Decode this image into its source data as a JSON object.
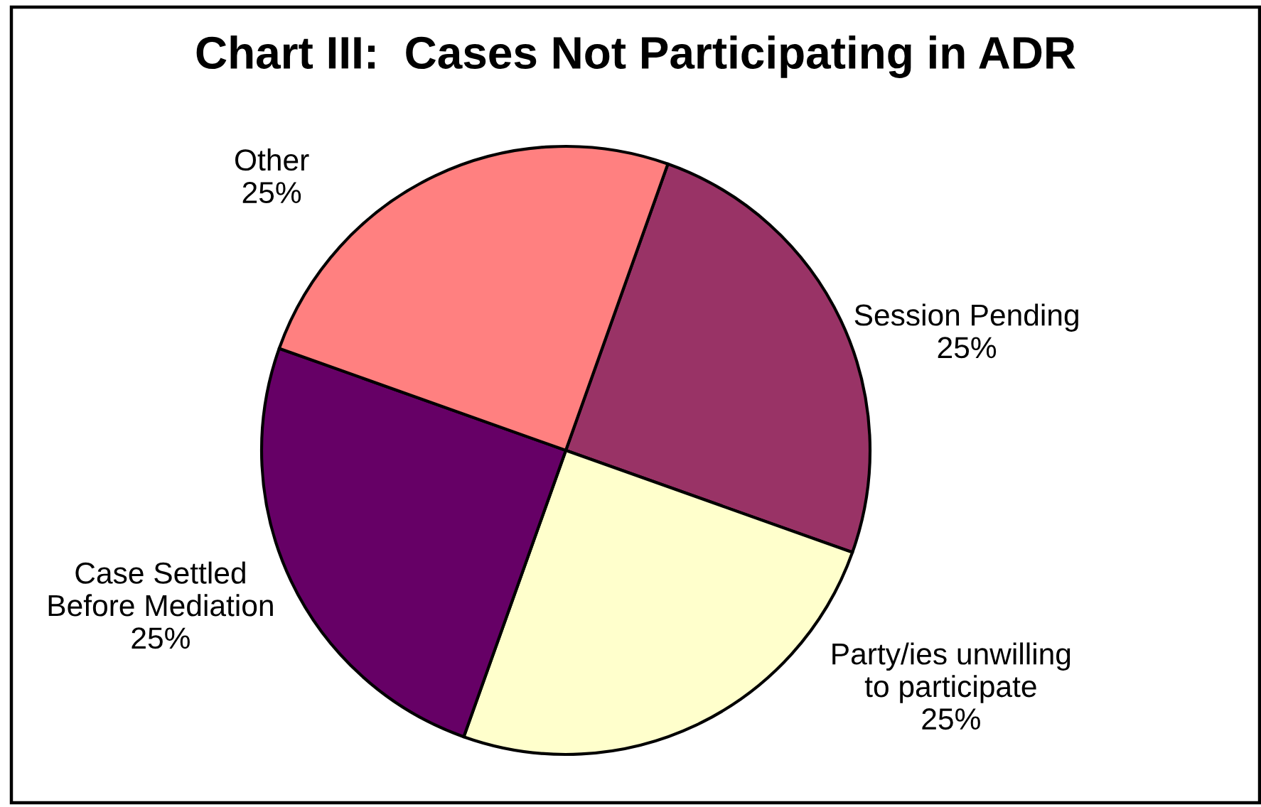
{
  "chart_data": {
    "type": "pie",
    "title": "Chart III:  Cases Not Participating in ADR",
    "categories": [
      "Session Pending",
      "Party/ies unwilling\nto participate",
      "Case Settled\nBefore Mediation",
      "Other"
    ],
    "values": [
      25,
      25,
      25,
      25
    ],
    "colors": [
      "#993366",
      "#ffffcc",
      "#660066",
      "#ff8080"
    ],
    "value_labels": [
      "25%",
      "25%",
      "25%",
      "25%"
    ]
  }
}
